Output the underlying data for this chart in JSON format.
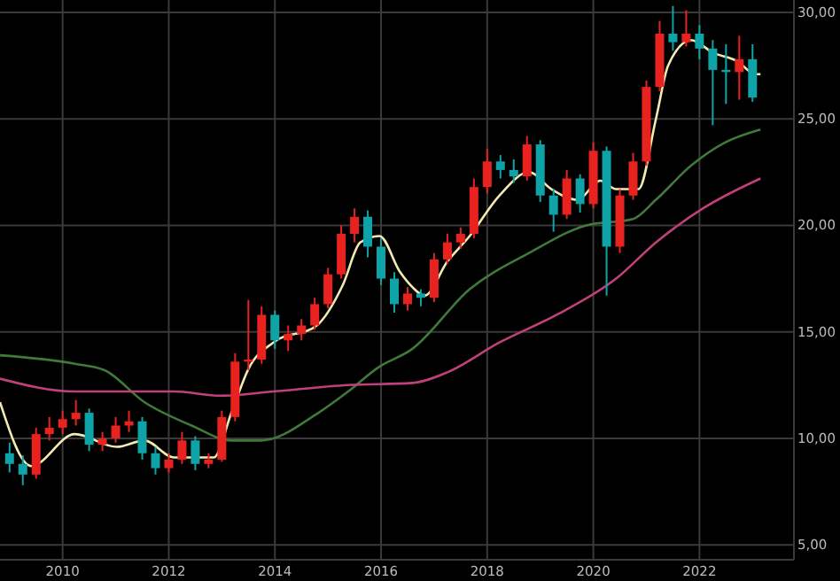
{
  "chart_data": {
    "type": "candlestick",
    "x": [
      2009,
      2009.25,
      2009.5,
      2009.75,
      2010,
      2010.25,
      2010.5,
      2010.75,
      2011,
      2011.25,
      2011.5,
      2011.75,
      2012,
      2012.25,
      2012.5,
      2012.75,
      2013,
      2013.25,
      2013.5,
      2013.75,
      2014,
      2014.25,
      2014.5,
      2014.75,
      2015,
      2015.25,
      2015.5,
      2015.75,
      2016,
      2016.25,
      2016.5,
      2016.75,
      2017,
      2017.25,
      2017.5,
      2017.75,
      2018,
      2018.25,
      2018.5,
      2018.75,
      2019,
      2019.25,
      2019.5,
      2019.75,
      2020,
      2020.25,
      2020.5,
      2020.75,
      2021,
      2021.25,
      2021.5,
      2021.75,
      2022,
      2022.25,
      2022.5,
      2022.75,
      2023
    ],
    "ohlc": [
      [
        9.3,
        9.8,
        8.4,
        8.8
      ],
      [
        8.8,
        9.2,
        7.8,
        8.3
      ],
      [
        8.3,
        10.5,
        8.1,
        10.2
      ],
      [
        10.2,
        11,
        9.9,
        10.5
      ],
      [
        10.5,
        11.3,
        10.2,
        10.9
      ],
      [
        10.9,
        11.8,
        10.6,
        11.2
      ],
      [
        11.2,
        11.4,
        9.4,
        9.7
      ],
      [
        9.7,
        10.3,
        9.4,
        10
      ],
      [
        10,
        11,
        9.8,
        10.6
      ],
      [
        10.6,
        11.3,
        10.3,
        10.8
      ],
      [
        10.8,
        11,
        9,
        9.3
      ],
      [
        9.3,
        9.6,
        8.3,
        8.6
      ],
      [
        8.6,
        9.3,
        8.4,
        9
      ],
      [
        9,
        10.3,
        8.8,
        9.9
      ],
      [
        9.9,
        10.1,
        8.5,
        8.8
      ],
      [
        8.8,
        9.3,
        8.6,
        9
      ],
      [
        9,
        11.3,
        8.9,
        11
      ],
      [
        11,
        14,
        10.8,
        13.6
      ],
      [
        13.6,
        16.5,
        13.2,
        13.7
      ],
      [
        13.7,
        16.2,
        13.5,
        15.8
      ],
      [
        15.8,
        16,
        14.2,
        14.6
      ],
      [
        14.6,
        15.3,
        14.1,
        14.9
      ],
      [
        14.9,
        15.6,
        14.6,
        15.3
      ],
      [
        15.3,
        16.6,
        15.1,
        16.3
      ],
      [
        16.3,
        18,
        16.1,
        17.7
      ],
      [
        17.7,
        20,
        17.5,
        19.6
      ],
      [
        19.6,
        20.8,
        19.2,
        20.4
      ],
      [
        20.4,
        20.7,
        18.5,
        19
      ],
      [
        19,
        19.4,
        17.2,
        17.5
      ],
      [
        17.5,
        17.8,
        15.9,
        16.3
      ],
      [
        16.3,
        17.1,
        16,
        16.8
      ],
      [
        16.8,
        17,
        16.2,
        16.6
      ],
      [
        16.6,
        18.7,
        16.4,
        18.4
      ],
      [
        18.4,
        19.6,
        18.2,
        19.2
      ],
      [
        19.2,
        19.9,
        18.9,
        19.6
      ],
      [
        19.6,
        22.2,
        19.4,
        21.8
      ],
      [
        21.8,
        23.6,
        21.5,
        23
      ],
      [
        23,
        23.3,
        22.2,
        22.6
      ],
      [
        22.6,
        23.1,
        22,
        22.3
      ],
      [
        22.3,
        24.2,
        22.1,
        23.8
      ],
      [
        23.8,
        24,
        21.1,
        21.4
      ],
      [
        21.4,
        21.7,
        19.7,
        20.5
      ],
      [
        20.5,
        22.6,
        20.3,
        22.2
      ],
      [
        22.2,
        22.4,
        20.6,
        21
      ],
      [
        21,
        23.9,
        20.8,
        23.5
      ],
      [
        23.5,
        23.7,
        16.7,
        19
      ],
      [
        19,
        21.7,
        18.7,
        21.4
      ],
      [
        21.4,
        23.4,
        21.2,
        23
      ],
      [
        23,
        26.8,
        22.8,
        26.5
      ],
      [
        26.5,
        29.6,
        26.3,
        29
      ],
      [
        29,
        30.3,
        28.2,
        28.6
      ],
      [
        28.6,
        30.1,
        28.4,
        29
      ],
      [
        29,
        29.4,
        27.8,
        28.3
      ],
      [
        28.3,
        28.7,
        24.7,
        27.3
      ],
      [
        27.3,
        28.5,
        25.7,
        27.2
      ],
      [
        27.2,
        28.9,
        25.9,
        27.8
      ],
      [
        27.8,
        28.5,
        25.8,
        26
      ]
    ],
    "colors": [
      "#0fa3a8",
      "#0fa3a8",
      "#e8221f",
      "#e8221f",
      "#e8221f",
      "#e8221f",
      "#0fa3a8",
      "#e8221f",
      "#e8221f",
      "#e8221f",
      "#0fa3a8",
      "#0fa3a8",
      "#e8221f",
      "#e8221f",
      "#0fa3a8",
      "#e8221f",
      "#e8221f",
      "#e8221f",
      "#e8221f",
      "#e8221f",
      "#0fa3a8",
      "#e8221f",
      "#e8221f",
      "#e8221f",
      "#e8221f",
      "#e8221f",
      "#e8221f",
      "#0fa3a8",
      "#0fa3a8",
      "#0fa3a8",
      "#e8221f",
      "#0fa3a8",
      "#e8221f",
      "#e8221f",
      "#e8221f",
      "#e8221f",
      "#e8221f",
      "#0fa3a8",
      "#0fa3a8",
      "#e8221f",
      "#0fa3a8",
      "#0fa3a8",
      "#e8221f",
      "#0fa3a8",
      "#e8221f",
      "#0fa3a8",
      "#e8221f",
      "#e8221f",
      "#e8221f",
      "#e8221f",
      "#0fa3a8",
      "#e8221f",
      "#0fa3a8",
      "#0fa3a8",
      "#0fa3a8",
      "#e8221f",
      "#0fa3a8"
    ],
    "series": [
      {
        "type": "line",
        "color": "#f2eab0",
        "x": [
          2008.82,
          2009.41,
          2010.23,
          2011.02,
          2011.54,
          2012.1,
          2012.85,
          2013.18,
          2013.51,
          2013.97,
          2014.79,
          2015.28,
          2015.61,
          2015.97,
          2016.36,
          2016.59,
          2016.82,
          2017.25,
          2017.67,
          2018.23,
          2018.79,
          2019.21,
          2019.7,
          2020.13,
          2020.43,
          2020.85,
          2021.18,
          2021.41,
          2021.84,
          2022.26,
          2022.72,
          2023.05,
          2023.15
        ],
        "values": [
          11.7,
          8.7,
          10.2,
          9.6,
          9.9,
          9.1,
          9.1,
          11.2,
          13.3,
          14.5,
          15.3,
          17.2,
          19.2,
          19.5,
          17.8,
          17.1,
          16.7,
          18.3,
          19.5,
          21.4,
          22.5,
          21.7,
          21.2,
          22.1,
          21.7,
          21.7,
          25,
          27.5,
          28.7,
          28.1,
          27.7,
          27.1,
          27.1
        ]
      },
      {
        "type": "line",
        "color": "#3f7a3a",
        "x": [
          2008.82,
          2010.23,
          2010.79,
          2011.54,
          2012.43,
          2013.18,
          2013.74,
          2014.82,
          2015.38,
          2015.93,
          2016.59,
          2017.67,
          2018.79,
          2019.87,
          2020.75,
          2021.18,
          2021.84,
          2022.49,
          2023.15
        ],
        "values": [
          13.9,
          13.5,
          13.2,
          11.7,
          10.6,
          9.9,
          9.9,
          11.2,
          12.2,
          13.3,
          14.2,
          17,
          18.7,
          20,
          20.3,
          21.2,
          22.8,
          23.9,
          24.5
        ]
      },
      {
        "type": "line",
        "color": "#c0407a",
        "x": [
          2008.82,
          2010.23,
          2012.1,
          2012.98,
          2013.97,
          2015.38,
          2016.59,
          2017.25,
          2018.23,
          2019.31,
          2020.43,
          2021.18,
          2022.07,
          2023.15
        ],
        "values": [
          12.8,
          12.2,
          12.2,
          12,
          12.2,
          12.5,
          12.6,
          13.1,
          14.5,
          15.8,
          17.5,
          19.2,
          20.8,
          22.2
        ]
      }
    ],
    "xlim": [
      2008.82,
      2023.78
    ],
    "ylim": [
      4.3,
      30.58
    ],
    "xticks": [
      2010,
      2012,
      2014,
      2016,
      2018,
      2020,
      2022
    ],
    "yticks": [
      {
        "value": 5,
        "label": "5,00"
      },
      {
        "value": 10,
        "label": "10,00"
      },
      {
        "value": 15,
        "label": "15,00"
      },
      {
        "value": 20,
        "label": "20,00"
      },
      {
        "value": 25,
        "label": "25,00"
      },
      {
        "value": 30,
        "label": "30,00"
      }
    ],
    "grid": true
  }
}
